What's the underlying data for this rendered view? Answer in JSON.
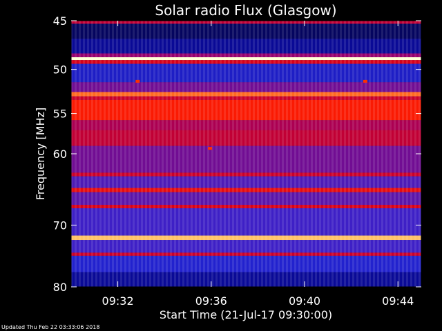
{
  "chart_data": {
    "type": "heatmap",
    "title": "Solar radio Flux (Glasgow)",
    "xlabel": "Start Time (21-Jul-17 09:30:00)",
    "ylabel": "Frequency [MHz]",
    "x_ticks": [
      "09:32",
      "09:36",
      "09:40",
      "09:44"
    ],
    "y_ticks": [
      "45",
      "50",
      "55",
      "60",
      "70",
      "80"
    ],
    "y_scale": "log",
    "xlim": [
      "09:30:00",
      "09:45:00"
    ],
    "ylim": [
      45,
      80
    ],
    "bands": [
      {
        "f_from": 45.0,
        "f_to": 45.3,
        "level": 0.6
      },
      {
        "f_from": 45.3,
        "f_to": 46.8,
        "level": 0.1
      },
      {
        "f_from": 46.8,
        "f_to": 48.3,
        "level": 0.2
      },
      {
        "f_from": 48.3,
        "f_to": 48.7,
        "level": 0.5
      },
      {
        "f_from": 48.7,
        "f_to": 49.0,
        "level": 1.0
      },
      {
        "f_from": 49.0,
        "f_to": 49.4,
        "level": 0.65
      },
      {
        "f_from": 49.4,
        "f_to": 51.4,
        "level": 0.3
      },
      {
        "f_from": 51.4,
        "f_to": 52.5,
        "level": 0.45
      },
      {
        "f_from": 52.5,
        "f_to": 53.0,
        "level": 0.88
      },
      {
        "f_from": 53.0,
        "f_to": 53.4,
        "level": 0.62
      },
      {
        "f_from": 53.4,
        "f_to": 55.8,
        "level": 0.8
      },
      {
        "f_from": 55.8,
        "f_to": 57.0,
        "level": 0.55
      },
      {
        "f_from": 57.0,
        "f_to": 59.0,
        "level": 0.6
      },
      {
        "f_from": 59.0,
        "f_to": 62.5,
        "level": 0.45
      },
      {
        "f_from": 62.5,
        "f_to": 63.0,
        "level": 0.62
      },
      {
        "f_from": 63.0,
        "f_to": 64.6,
        "level": 0.4
      },
      {
        "f_from": 64.6,
        "f_to": 65.2,
        "level": 0.72
      },
      {
        "f_from": 65.2,
        "f_to": 67.0,
        "level": 0.42
      },
      {
        "f_from": 67.0,
        "f_to": 67.5,
        "level": 0.65
      },
      {
        "f_from": 67.5,
        "f_to": 71.6,
        "level": 0.38
      },
      {
        "f_from": 71.6,
        "f_to": 72.3,
        "level": 0.95
      },
      {
        "f_from": 72.3,
        "f_to": 74.3,
        "level": 0.38
      },
      {
        "f_from": 74.3,
        "f_to": 74.8,
        "level": 0.62
      },
      {
        "f_from": 74.8,
        "f_to": 77.5,
        "level": 0.32
      },
      {
        "f_from": 77.5,
        "f_to": 80.0,
        "level": 0.2
      }
    ],
    "spots": [
      {
        "time": "09:32:51",
        "f": 51.3
      },
      {
        "time": "09:35:57",
        "f": 59.3
      },
      {
        "time": "09:42:36",
        "f": 51.3
      }
    ]
  },
  "footer": "Updated Thu Feb 22 03:33:06 2018"
}
